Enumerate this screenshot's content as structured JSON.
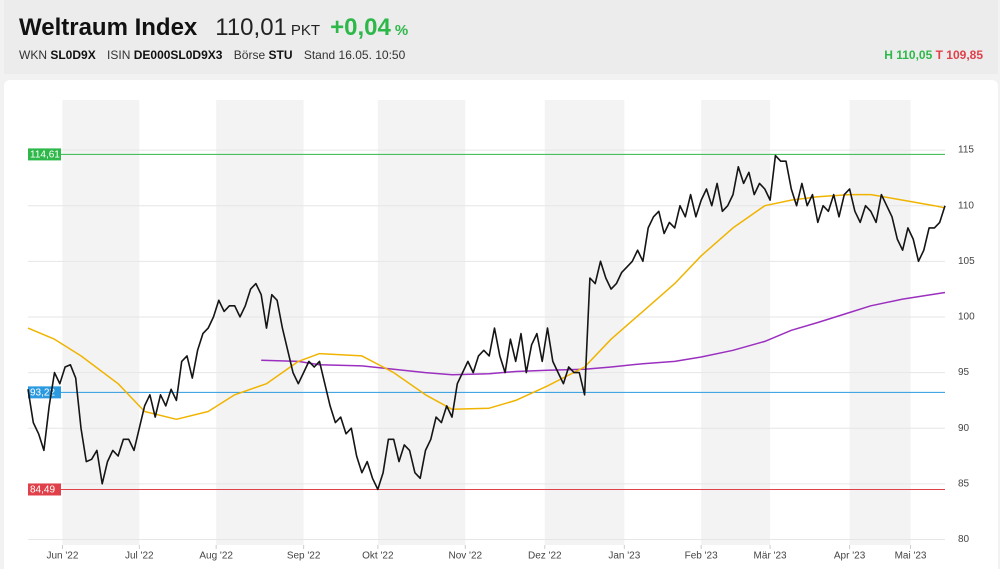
{
  "header": {
    "title": "Weltraum Index",
    "price": "110,01",
    "unit": "PKT",
    "change": "+0,04",
    "change_unit": "%",
    "meta": [
      {
        "label": "WKN",
        "value": "SL0D9X"
      },
      {
        "label": "ISIN",
        "value": "DE000SL0D9X3"
      },
      {
        "label": "Börse",
        "value": "STU"
      }
    ],
    "stand": "Stand 16.05. 10:50",
    "high_label": "H",
    "high": "110,05",
    "low_label": "T",
    "low": "109,85"
  },
  "chart_data": {
    "type": "line",
    "xlim": [
      0,
      173
    ],
    "xticks": [
      {
        "value": 6.5,
        "label": "Jun '22"
      },
      {
        "value": 21,
        "label": "Jul '22"
      },
      {
        "value": 35.5,
        "label": "Aug '22"
      },
      {
        "value": 52,
        "label": "Sep '22"
      },
      {
        "value": 66,
        "label": "Okt '22"
      },
      {
        "value": 82.5,
        "label": "Nov '22"
      },
      {
        "value": 97.5,
        "label": "Dez '22"
      },
      {
        "value": 112.5,
        "label": "Jan '23"
      },
      {
        "value": 127,
        "label": "Feb '23"
      },
      {
        "value": 140,
        "label": "Mär '23"
      },
      {
        "value": 155,
        "label": "Apr '23"
      },
      {
        "value": 166.5,
        "label": "Mai '23"
      }
    ],
    "ylim": [
      79.5,
      119.5
    ],
    "yticks": [
      80,
      85,
      90,
      95,
      100,
      105,
      110,
      115
    ],
    "grid": true,
    "levels": [
      {
        "value": 114.61,
        "label": "114,61",
        "color": "#2fb84a"
      },
      {
        "value": 93.22,
        "label": "93,22",
        "color": "#2c9ae0"
      },
      {
        "value": 84.49,
        "label": "84,49",
        "color": "#e0404a"
      }
    ],
    "series": [
      {
        "color": "#151515",
        "values": [
          93.5,
          90.5,
          89.5,
          88,
          92,
          95,
          94,
          95.5,
          95.7,
          94.5,
          90,
          87,
          87.2,
          88,
          85,
          87,
          88,
          87.5,
          89,
          89,
          88,
          90,
          92,
          93,
          91,
          93,
          92,
          93.5,
          92.5,
          96,
          96.5,
          94.5,
          97,
          98.5,
          99,
          100,
          101.5,
          100.5,
          101,
          101,
          100,
          101,
          102.5,
          103,
          102,
          99,
          102,
          101.5,
          99,
          97,
          95,
          94,
          95,
          96,
          95.5,
          96,
          94,
          92,
          90.5,
          91,
          89.5,
          90,
          87.5,
          86,
          87,
          85.5,
          84.5,
          86,
          89,
          89,
          87,
          88.5,
          88,
          86,
          85.5,
          88,
          89,
          91,
          90.5,
          92,
          91,
          94,
          95,
          96,
          95,
          96.5,
          97,
          96.5,
          99,
          96.5,
          95,
          98,
          96,
          98.5,
          95,
          97.5,
          98.5,
          96,
          99,
          96,
          95,
          94,
          95.5,
          95,
          95,
          93,
          103.5,
          103,
          105,
          103.5,
          102.5,
          103,
          104,
          104.5,
          105,
          106,
          105,
          108,
          109,
          109.5,
          107.5,
          108.5,
          108,
          110,
          109,
          111,
          109,
          110.5,
          111.5,
          110,
          112,
          109.5,
          110,
          111,
          113.5,
          112,
          113,
          111,
          112,
          111.5,
          110.5,
          114.5,
          114,
          114,
          111.5,
          110,
          112,
          110,
          111,
          108.5,
          110,
          109.5,
          111,
          109,
          111,
          111.5,
          109.5,
          108.5,
          110,
          109.5,
          108.5,
          111,
          110,
          109,
          107,
          106,
          108,
          107,
          105,
          106,
          108,
          108,
          108.5,
          110
        ]
      },
      {
        "color": "#f0b400",
        "x": [
          0,
          5,
          10,
          17,
          22,
          28,
          34,
          39,
          45,
          51,
          55,
          63,
          69,
          75,
          80,
          87,
          92,
          98,
          105,
          110,
          116,
          122,
          127,
          133,
          139,
          144,
          149,
          155,
          159,
          165,
          171,
          173
        ],
        "values": [
          99,
          98,
          96.5,
          94,
          91.5,
          90.8,
          91.5,
          93,
          94,
          96,
          96.7,
          96.5,
          95,
          93,
          91.7,
          91.8,
          92.5,
          93.8,
          95.5,
          98,
          100.5,
          103,
          105.5,
          108,
          110,
          110.5,
          110.8,
          111,
          111,
          110.5,
          110,
          109.8
        ]
      },
      {
        "color": "#9b30c0",
        "x": [
          44,
          51,
          55,
          63,
          69,
          75,
          80,
          87,
          92,
          98,
          105,
          110,
          116,
          122,
          127,
          133,
          139,
          144,
          149,
          155,
          159,
          165,
          173
        ],
        "values": [
          96.1,
          96,
          95.7,
          95.6,
          95.3,
          95,
          94.8,
          94.9,
          95.1,
          95.2,
          95.3,
          95.5,
          95.8,
          96,
          96.4,
          97,
          97.8,
          98.8,
          99.5,
          100.4,
          101,
          101.6,
          102.2
        ]
      }
    ]
  }
}
